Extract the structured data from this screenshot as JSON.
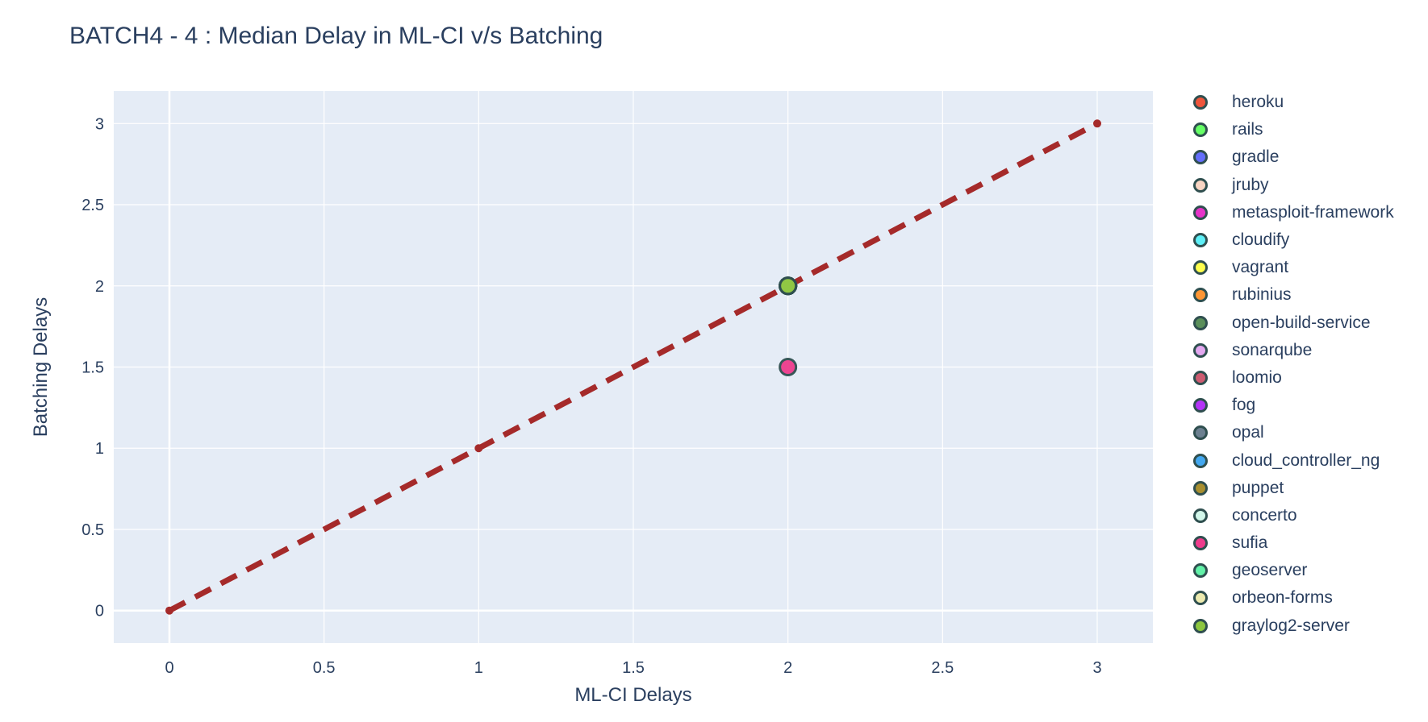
{
  "chart_data": {
    "type": "scatter",
    "title": "BATCH4 - 4 : Median Delay in ML-CI v/s Batching",
    "xlabel": "ML-CI Delays",
    "ylabel": "Batching Delays",
    "xlim": [
      -0.18,
      3.18
    ],
    "ylim": [
      -0.2,
      3.2
    ],
    "x_ticks": [
      0,
      0.5,
      1,
      1.5,
      2,
      2.5,
      3
    ],
    "x_tick_labels": [
      "0",
      "0.5",
      "1",
      "1.5",
      "2",
      "2.5",
      "3"
    ],
    "y_ticks": [
      0,
      0.5,
      1,
      1.5,
      2,
      2.5,
      3
    ],
    "y_tick_labels": [
      "0",
      "0.5",
      "1",
      "1.5",
      "2",
      "2.5",
      "3"
    ],
    "grid": true,
    "legend_position": "right",
    "plot_background": "#e5ecf6",
    "reference_line": {
      "x": [
        0,
        1,
        2,
        3
      ],
      "y": [
        0,
        1,
        2,
        3
      ],
      "color": "#a52a2a",
      "style": "dashed"
    },
    "series": [
      {
        "name": "heroku",
        "color": "#ef553b",
        "x": [
          2
        ],
        "y": [
          2
        ]
      },
      {
        "name": "rails",
        "color": "#66ff66",
        "x": [
          2
        ],
        "y": [
          2
        ]
      },
      {
        "name": "gradle",
        "color": "#636efa",
        "x": [
          2
        ],
        "y": [
          2
        ]
      },
      {
        "name": "jruby",
        "color": "#f8d5c3",
        "x": [
          2
        ],
        "y": [
          2
        ]
      },
      {
        "name": "metasploit-framework",
        "color": "#e633c9",
        "x": [
          2
        ],
        "y": [
          2
        ]
      },
      {
        "name": "cloudify",
        "color": "#5ef0f7",
        "x": [
          2
        ],
        "y": [
          2
        ]
      },
      {
        "name": "vagrant",
        "color": "#ffff4d",
        "x": [
          2
        ],
        "y": [
          2
        ]
      },
      {
        "name": "rubinius",
        "color": "#ff9633",
        "x": [
          2
        ],
        "y": [
          2
        ]
      },
      {
        "name": "open-build-service",
        "color": "#5a8f5a",
        "x": [
          2
        ],
        "y": [
          2
        ]
      },
      {
        "name": "sonarqube",
        "color": "#e3a8f0",
        "x": [
          2
        ],
        "y": [
          2
        ]
      },
      {
        "name": "loomio",
        "color": "#cc5c71",
        "x": [
          2
        ],
        "y": [
          2
        ]
      },
      {
        "name": "fog",
        "color": "#b433f7",
        "x": [
          2
        ],
        "y": [
          2
        ]
      },
      {
        "name": "opal",
        "color": "#6c8090",
        "x": [
          2
        ],
        "y": [
          2
        ]
      },
      {
        "name": "cloud_controller_ng",
        "color": "#43a8f0",
        "x": [
          2
        ],
        "y": [
          2
        ]
      },
      {
        "name": "puppet",
        "color": "#a88f2f",
        "x": [
          2
        ],
        "y": [
          2
        ]
      },
      {
        "name": "concerto",
        "color": "#d2f7ea",
        "x": [
          2
        ],
        "y": [
          2
        ]
      },
      {
        "name": "sufia",
        "color": "#ee3c8c",
        "x": [
          2
        ],
        "y": [
          1.5
        ]
      },
      {
        "name": "geoserver",
        "color": "#62f2a8",
        "x": [
          2
        ],
        "y": [
          2
        ]
      },
      {
        "name": "orbeon-forms",
        "color": "#eceaaf",
        "x": [
          2
        ],
        "y": [
          2
        ]
      },
      {
        "name": "graylog2-server",
        "color": "#8cc63f",
        "x": [
          2
        ],
        "y": [
          2
        ]
      }
    ]
  }
}
